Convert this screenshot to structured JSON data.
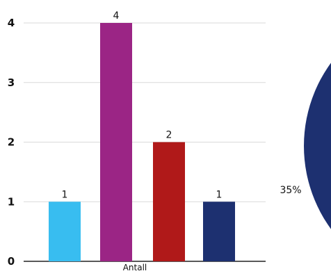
{
  "colors": {
    "background": "#ffffff",
    "gridline": "#d9d9d9",
    "text": "#111111"
  },
  "chart_data": [
    {
      "type": "bar",
      "xlabel": "Antall",
      "ylim": [
        0,
        4
      ],
      "yticks": [
        0,
        1,
        2,
        3,
        4
      ],
      "grid": true,
      "legend": "none",
      "values": [
        1,
        4,
        2,
        1
      ],
      "data_labels": [
        "1",
        "4",
        "2",
        "1"
      ],
      "colors": [
        "#38bdf0",
        "#9b2585",
        "#b01919",
        "#1d3070"
      ]
    },
    {
      "type": "pie",
      "partially_visible": true,
      "slice_labels": [
        "35%"
      ],
      "values": [
        35
      ],
      "colors": [
        "#1d3070"
      ]
    }
  ]
}
